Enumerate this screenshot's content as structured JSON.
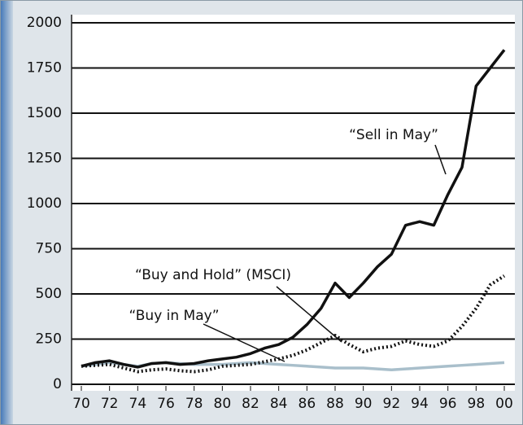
{
  "chart_data": {
    "type": "line",
    "x": [
      70,
      71,
      72,
      73,
      74,
      75,
      76,
      77,
      78,
      79,
      80,
      81,
      82,
      83,
      84,
      85,
      86,
      87,
      88,
      89,
      90,
      91,
      92,
      93,
      94,
      95,
      96,
      97,
      98,
      99,
      100
    ],
    "series": [
      {
        "name": "“Sell in May”",
        "color": "#111111",
        "style": "solid",
        "values": [
          100,
          120,
          130,
          110,
          95,
          115,
          120,
          110,
          115,
          130,
          140,
          150,
          170,
          200,
          220,
          260,
          330,
          420,
          560,
          480,
          560,
          650,
          720,
          880,
          900,
          880,
          1050,
          1200,
          1650,
          1750,
          1850
        ]
      },
      {
        "name": "“Buy and Hold” (MSCI)",
        "color": "#111111",
        "style": "dotted",
        "values": [
          100,
          105,
          110,
          90,
          70,
          80,
          85,
          75,
          70,
          80,
          100,
          105,
          110,
          125,
          140,
          160,
          190,
          230,
          270,
          220,
          180,
          200,
          210,
          240,
          220,
          210,
          240,
          320,
          420,
          550,
          600
        ]
      },
      {
        "name": "“Buy in May”",
        "color": "#a9bfcb",
        "style": "solid",
        "values": [
          100,
          110,
          120,
          110,
          100,
          115,
          120,
          115,
          110,
          110,
          110,
          115,
          120,
          115,
          110,
          105,
          100,
          95,
          90,
          90,
          90,
          85,
          80,
          85,
          90,
          95,
          100,
          105,
          110,
          115,
          120
        ]
      }
    ],
    "xlim": [
      70,
      100
    ],
    "xticks": [
      70,
      72,
      74,
      76,
      78,
      80,
      82,
      84,
      86,
      88,
      90,
      92,
      94,
      96,
      98,
      {
        "value": 100,
        "label": "00"
      }
    ],
    "ylim": [
      0,
      2000
    ],
    "yticks": [
      0,
      250,
      500,
      750,
      1000,
      1250,
      1500,
      1750,
      2000
    ],
    "grid": true
  }
}
